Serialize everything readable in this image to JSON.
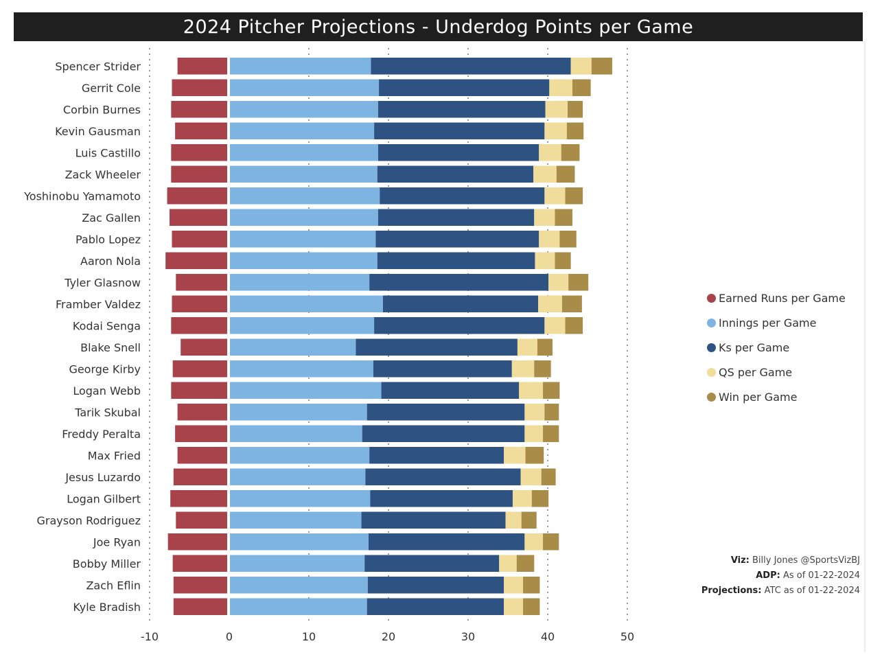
{
  "page": {
    "title": "2024 Pitcher Projections - Underdog Points per Game"
  },
  "legend": {
    "items": [
      {
        "label": "Earned Runs per Game",
        "color": "#a8424b"
      },
      {
        "label": "Innings per Game",
        "color": "#7db4e1"
      },
      {
        "label": "Ks per Game",
        "color": "#2e5282"
      },
      {
        "label": "QS per Game",
        "color": "#f1dd9b"
      },
      {
        "label": "Win per Game",
        "color": "#a98c48"
      }
    ]
  },
  "credits": {
    "viz_label": "Viz:",
    "viz_value": "Billy Jones @SportsVizBJ",
    "adp_label": "ADP:",
    "adp_value": "As of 01-22-2024",
    "proj_label": "Projections:",
    "proj_value": "ATC as of 01-22-2024"
  },
  "chart_data": {
    "type": "bar",
    "orientation": "horizontal",
    "stacked": true,
    "title": "2024 Pitcher Projections - Underdog Points per Game",
    "xlim": [
      -10,
      50
    ],
    "xticks": [
      -10,
      0,
      10,
      20,
      30,
      40,
      50
    ],
    "grid": "dotted vertical",
    "legend_position": "right",
    "categories": [
      "Spencer Strider",
      "Gerrit Cole",
      "Corbin Burnes",
      "Kevin Gausman",
      "Luis Castillo",
      "Zack Wheeler",
      "Yoshinobu Yamamoto",
      "Zac Gallen",
      "Pablo Lopez",
      "Aaron Nola",
      "Tyler Glasnow",
      "Framber Valdez",
      "Kodai Senga",
      "Blake Snell",
      "George Kirby",
      "Logan Webb",
      "Tarik Skubal",
      "Freddy Peralta",
      "Max Fried",
      "Jesus Luzardo",
      "Logan Gilbert",
      "Grayson Rodriguez",
      "Joe Ryan",
      "Bobby Miller",
      "Zach Eflin",
      "Kyle Bradish"
    ],
    "series": [
      {
        "name": "Earned Runs per Game",
        "color": "#a8424b",
        "values": [
          -6.5,
          -7.2,
          -7.3,
          -6.8,
          -7.3,
          -7.3,
          -7.8,
          -7.5,
          -7.2,
          -8.0,
          -6.7,
          -7.2,
          -7.3,
          -6.1,
          -7.1,
          -7.3,
          -6.5,
          -6.8,
          -6.5,
          -7.0,
          -7.4,
          -6.7,
          -7.7,
          -7.1,
          -7.0,
          -7.0
        ]
      },
      {
        "name": "Innings per Game",
        "color": "#7db4e1",
        "values": [
          17.8,
          18.8,
          18.7,
          18.2,
          18.7,
          18.6,
          18.9,
          18.7,
          18.4,
          18.6,
          17.6,
          19.3,
          18.2,
          15.9,
          18.1,
          19.1,
          17.3,
          16.7,
          17.6,
          17.1,
          17.7,
          16.6,
          17.5,
          17.0,
          17.4,
          17.3
        ]
      },
      {
        "name": "Ks per Game",
        "color": "#2e5282",
        "values": [
          25.1,
          21.4,
          21.0,
          21.4,
          20.2,
          19.6,
          20.7,
          19.6,
          20.5,
          19.8,
          22.5,
          19.5,
          21.4,
          20.3,
          17.4,
          17.3,
          19.8,
          20.4,
          16.9,
          19.5,
          17.9,
          18.1,
          19.6,
          16.9,
          17.1,
          17.2
        ]
      },
      {
        "name": "QS per Game",
        "color": "#f1dd9b",
        "values": [
          2.6,
          2.9,
          2.8,
          2.8,
          2.8,
          2.9,
          2.6,
          2.6,
          2.6,
          2.5,
          2.5,
          3.0,
          2.6,
          2.5,
          2.8,
          3.0,
          2.5,
          2.3,
          2.7,
          2.6,
          2.4,
          2.0,
          2.3,
          2.2,
          2.4,
          2.4
        ]
      },
      {
        "name": "Win per Game",
        "color": "#a98c48",
        "values": [
          2.6,
          2.3,
          1.9,
          2.1,
          2.3,
          2.3,
          2.2,
          2.2,
          2.1,
          2.0,
          2.5,
          2.5,
          2.2,
          1.9,
          2.1,
          2.1,
          1.8,
          2.0,
          2.3,
          1.8,
          2.1,
          1.9,
          2.0,
          2.2,
          2.1,
          2.1
        ]
      }
    ]
  }
}
